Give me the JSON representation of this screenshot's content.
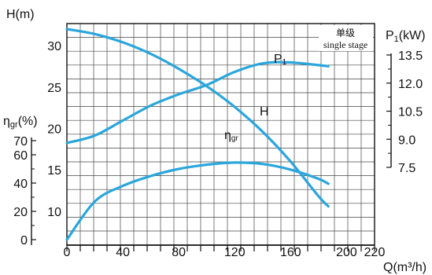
{
  "chart_data": {
    "type": "line",
    "accent_color": "#2aa6dc",
    "grid": true,
    "stage_note": {
      "zh": "单级",
      "en": "single stage"
    },
    "x_axis": {
      "label": "Q(m³/h)",
      "range": [
        0,
        220
      ],
      "ticks": [
        0,
        40,
        80,
        120,
        160,
        200,
        220
      ]
    },
    "left_axes": [
      {
        "id": "H",
        "label": "H(m)",
        "range": [
          8,
          32
        ],
        "ticks": [
          30,
          25,
          20,
          15,
          10
        ],
        "tick_labels": [
          "30",
          "25",
          "20",
          "15",
          "10"
        ]
      },
      {
        "id": "eta",
        "label": "ηgr(%)",
        "label_main": "η",
        "label_sub": "gr",
        "label_suffix": "(%)",
        "range": [
          0,
          70
        ],
        "ticks": [
          70,
          60,
          40,
          20,
          0
        ],
        "tick_labels": [
          "70",
          "60",
          "40",
          "20",
          "0"
        ]
      }
    ],
    "right_axis": {
      "id": "P",
      "label": "P1(kW)",
      "label_main": "P",
      "label_sub": "1",
      "label_suffix": "(kW)",
      "range": [
        7.5,
        13.5
      ],
      "ticks": [
        13.5,
        12.0,
        10.5,
        9.0,
        7.5
      ],
      "tick_labels": [
        "13.5",
        "12.0",
        "10.5",
        "9.0",
        "7.5"
      ]
    },
    "series": [
      {
        "name": "H",
        "axis": "H",
        "label_main": "H",
        "label_sub": "",
        "x": [
          0,
          20,
          40,
          60,
          80,
          100,
          120,
          140,
          160,
          180,
          187
        ],
        "y": [
          32.0,
          31.4,
          30.4,
          29.0,
          27.2,
          25.1,
          22.6,
          19.6,
          16.0,
          11.8,
          10.6
        ]
      },
      {
        "name": "P1",
        "axis": "P",
        "label_main": "P",
        "label_sub": "1",
        "x": [
          0,
          20,
          40,
          60,
          80,
          100,
          120,
          140,
          160,
          187
        ],
        "y": [
          8.8,
          9.2,
          10.0,
          10.8,
          11.4,
          11.9,
          12.6,
          13.05,
          13.1,
          12.9
        ]
      },
      {
        "name": "ηgr",
        "axis": "eta",
        "label_main": "η",
        "label_sub": "gr",
        "x": [
          0,
          20,
          40,
          60,
          80,
          100,
          120,
          140,
          160,
          180,
          187
        ],
        "y": [
          0,
          27,
          38,
          45,
          50,
          53,
          54.5,
          53.5,
          49.5,
          43,
          39.5
        ]
      }
    ]
  }
}
